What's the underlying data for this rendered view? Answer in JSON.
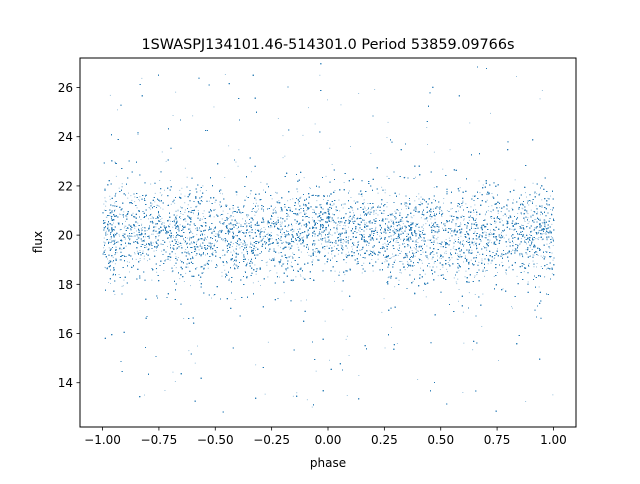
{
  "chart_data": {
    "type": "scatter",
    "title": "1SWASPJ134101.46-514301.0 Period 53859.09766s",
    "xlabel": "phase",
    "ylabel": "flux",
    "xlim": [
      -1.1,
      1.1
    ],
    "ylim": [
      12.2,
      27.2
    ],
    "x_ticks": [
      -1.0,
      -0.75,
      -0.5,
      -0.25,
      0.0,
      0.25,
      0.5,
      0.75,
      1.0
    ],
    "x_tick_labels": [
      "−1.00",
      "−0.75",
      "−0.50",
      "−0.25",
      "0.00",
      "0.25",
      "0.50",
      "0.75",
      "1.00"
    ],
    "y_ticks": [
      14,
      16,
      18,
      20,
      22,
      24,
      26
    ],
    "y_tick_labels": [
      "14",
      "16",
      "18",
      "20",
      "22",
      "24",
      "26"
    ],
    "grid": false,
    "legend": "none",
    "point_color": "#1f77b4",
    "phase_range": [
      -1.0,
      1.0
    ],
    "flux_clip_range": [
      12.8,
      27.0
    ],
    "band_profile": {
      "phase": [
        -1.0,
        -0.75,
        -0.5,
        -0.45,
        -0.25,
        0.0,
        0.25,
        0.5,
        0.55,
        0.75,
        1.0
      ],
      "flux_center": [
        20.1,
        20.2,
        19.9,
        19.8,
        20.1,
        20.2,
        20.2,
        19.9,
        19.8,
        20.1,
        20.1
      ],
      "band_lower": [
        18.0,
        18.4,
        17.6,
        17.5,
        18.3,
        18.5,
        18.4,
        17.6,
        17.5,
        18.3,
        18.0
      ],
      "band_upper": [
        22.3,
        22.2,
        22.2,
        22.3,
        22.1,
        22.0,
        22.1,
        22.2,
        22.3,
        22.2,
        22.3
      ]
    }
  }
}
